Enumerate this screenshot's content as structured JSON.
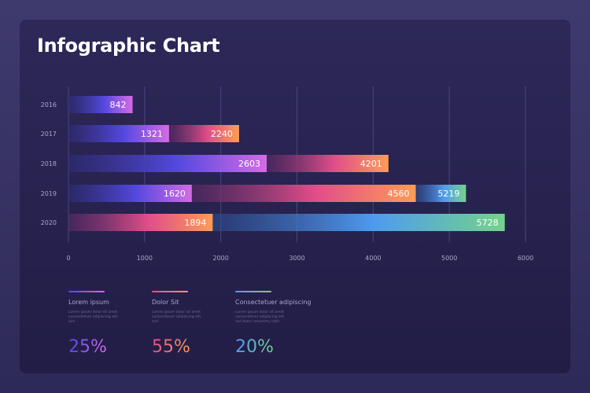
{
  "title": "Infographic Chart",
  "chart_data": {
    "type": "bar",
    "orientation": "horizontal",
    "stacked": true,
    "title": "Infographic Chart",
    "categories": [
      "2016",
      "2017",
      "2018",
      "2019",
      "2020"
    ],
    "bars": [
      {
        "category": "2016",
        "segments": [
          {
            "series": 0,
            "end": 842
          }
        ]
      },
      {
        "category": "2017",
        "segments": [
          {
            "series": 0,
            "end": 1321
          },
          {
            "series": 1,
            "end": 2240
          }
        ]
      },
      {
        "category": "2018",
        "segments": [
          {
            "series": 0,
            "end": 2603
          },
          {
            "series": 1,
            "end": 4201
          }
        ]
      },
      {
        "category": "2019",
        "segments": [
          {
            "series": 0,
            "end": 1620
          },
          {
            "series": 1,
            "end": 4560
          },
          {
            "series": 2,
            "end": 5219
          }
        ]
      },
      {
        "category": "2020",
        "segments": [
          {
            "series": 1,
            "end": 1894
          },
          {
            "series": 2,
            "end": 5728
          }
        ]
      }
    ],
    "xlim": [
      0,
      6000
    ],
    "xticks": [
      "0",
      "1000",
      "2000",
      "3000",
      "4000",
      "5000",
      "6000"
    ],
    "grid": true,
    "series_colors": [
      [
        "#2e2d78",
        "#5448e0",
        "#d56be6"
      ],
      [
        "#5a2a66",
        "#e04d8a",
        "#ff9c55"
      ],
      [
        "#2e4a8c",
        "#4f9af0",
        "#74d38a"
      ]
    ]
  },
  "legend": [
    {
      "name": "Lorem ipsum",
      "desc": "Lorem ipsum dolor sit amet consectetuer adipiscing elit, sed",
      "percent": "25%"
    },
    {
      "name": "Dolor Sit",
      "desc": "Lorem ipsum dolor sit amet consectetuer adipiscing elit, sed",
      "percent": "55%"
    },
    {
      "name": "Consectetuer adipiscing",
      "desc": "Lorem ipsum dolor sit amet consectetuer adipiscing elit, sed diam nonummy nibh",
      "percent": "20%"
    }
  ]
}
